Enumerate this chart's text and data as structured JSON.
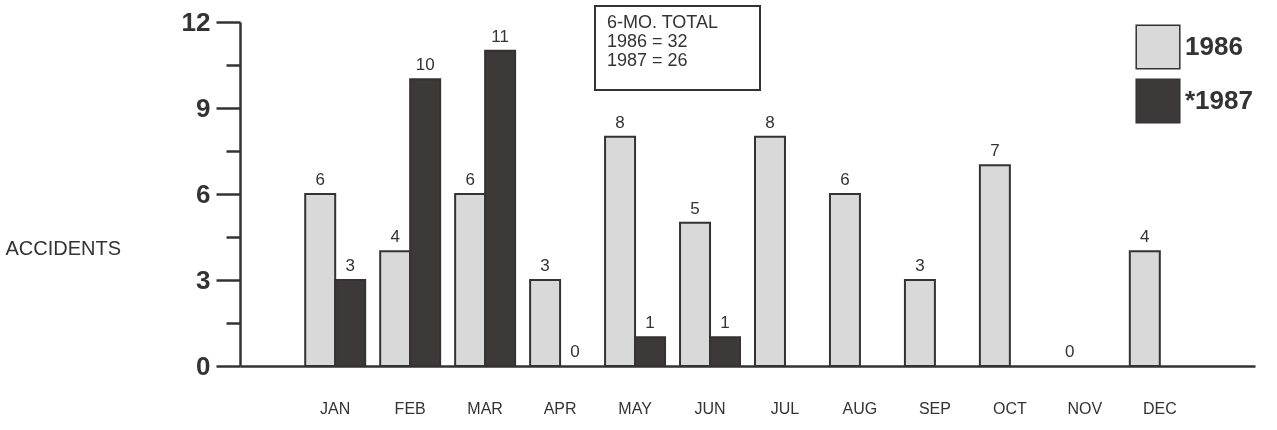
{
  "chart_data": {
    "type": "bar",
    "ylabel": "ACCIDENTS",
    "categories": [
      "JAN",
      "FEB",
      "MAR",
      "APR",
      "MAY",
      "JUN",
      "JUL",
      "AUG",
      "SEP",
      "OCT",
      "NOV",
      "DEC"
    ],
    "series": [
      {
        "name": "1986",
        "color": "#d9d9d9",
        "values": [
          6,
          4,
          6,
          3,
          8,
          5,
          8,
          6,
          3,
          7,
          0,
          4
        ]
      },
      {
        "name": "*1987",
        "color": "#3d3939",
        "values": [
          3,
          10,
          11,
          0,
          1,
          1,
          null,
          null,
          null,
          null,
          null,
          null
        ]
      }
    ],
    "ylim": [
      0,
      12
    ],
    "yticks": [
      0,
      {
        "value": 1.5,
        "label": null
      },
      3,
      {
        "value": 4.5,
        "label": null
      },
      6,
      {
        "value": 7.5,
        "label": null
      },
      9,
      {
        "value": 10.5,
        "label": null
      },
      12
    ],
    "annotations": [
      "6-MO. TOTAL\n1986 = 32\n1987 = 26"
    ],
    "data_labels": true,
    "legend": "top right",
    "grid": false
  }
}
